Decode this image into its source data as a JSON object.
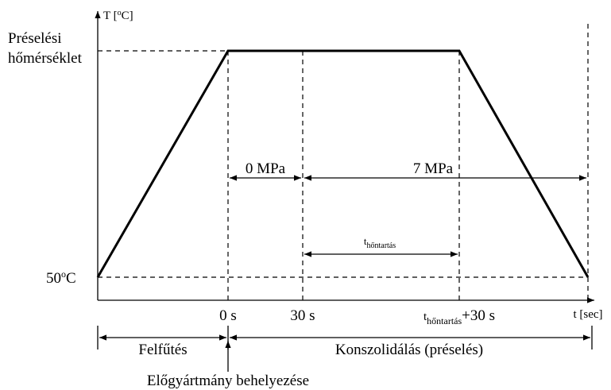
{
  "y_axis": {
    "label": {
      "main": "T [",
      "sup": "o",
      "end": "C]"
    }
  },
  "x_axis": {
    "label": "t [sec]"
  },
  "y_labels": {
    "press_temp": [
      "Préselési",
      "hőmérséklet"
    ],
    "start_temp": {
      "main": "50",
      "sup": "o",
      "end": "C"
    }
  },
  "x_labels": {
    "zero": "0 s",
    "thirty": "30 s",
    "hold_end": {
      "main": "t",
      "sub": "hőntartás",
      "end": "+30 s"
    }
  },
  "pressures": {
    "first": "0 MPa",
    "second": "7 MPa"
  },
  "hold_time": {
    "main": "t",
    "sub": "hőntartás"
  },
  "phases": {
    "heating": "Felfűtés",
    "consolidation": "Konszolidálás (préselés)"
  },
  "insertion": "Előgyártmány behelyezése"
}
